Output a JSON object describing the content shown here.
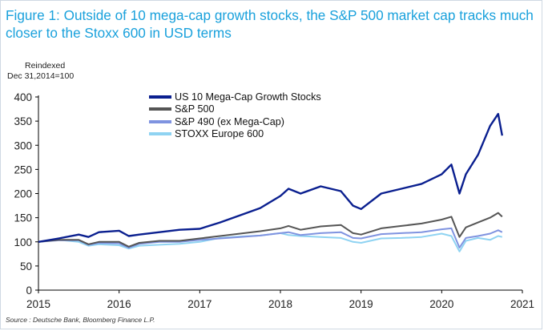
{
  "figure": {
    "title": "Figure 1: Outside of 10 mega-cap growth stocks, the S&P 500 market cap tracks much closer to the Stoxx 600 in USD terms",
    "ylabel_line1": "Reindexed",
    "ylabel_line2": "Dec 31,2014=100",
    "source": "Source : Deutsche Bank, Bloomberg Finance L.P."
  },
  "colors": {
    "title": "#1aa1dc",
    "mega_cap": "#0a1f8f",
    "sp500": "#555555",
    "sp490": "#7f93e0",
    "stoxx": "#8fd3f2"
  },
  "chart_data": {
    "type": "line",
    "ylim": [
      0,
      400
    ],
    "xlim": [
      2015,
      2021
    ],
    "yticks": [
      "0",
      "50",
      "100",
      "150",
      "200",
      "250",
      "300",
      "350",
      "400"
    ],
    "xticks": [
      "2015",
      "2016",
      "2017",
      "2018",
      "2019",
      "2020",
      "2021"
    ],
    "legend_position": "top-left",
    "grid": false,
    "x": [
      2015.0,
      2015.25,
      2015.5,
      2015.62,
      2015.75,
      2016.0,
      2016.12,
      2016.25,
      2016.5,
      2016.75,
      2017.0,
      2017.25,
      2017.5,
      2017.75,
      2018.0,
      2018.1,
      2018.25,
      2018.5,
      2018.75,
      2018.9,
      2019.0,
      2019.25,
      2019.5,
      2019.75,
      2020.0,
      2020.12,
      2020.22,
      2020.3,
      2020.45,
      2020.6,
      2020.7,
      2020.75
    ],
    "series": [
      {
        "name": "US 10 Mega-Cap Growth Stocks",
        "color_key": "mega_cap",
        "values": [
          100,
          107,
          115,
          110,
          120,
          123,
          112,
          115,
          120,
          125,
          127,
          140,
          155,
          170,
          195,
          210,
          200,
          215,
          205,
          175,
          168,
          200,
          210,
          220,
          240,
          260,
          200,
          240,
          280,
          340,
          365,
          320
        ]
      },
      {
        "name": "S&P 500",
        "color_key": "sp500",
        "values": [
          100,
          104,
          104,
          95,
          100,
          100,
          90,
          98,
          102,
          102,
          107,
          112,
          117,
          122,
          128,
          133,
          125,
          132,
          135,
          118,
          115,
          128,
          133,
          138,
          146,
          152,
          110,
          130,
          140,
          150,
          160,
          152
        ]
      },
      {
        "name": "S&P 490 (ex Mega-Cap)",
        "color_key": "sp490",
        "values": [
          100,
          103,
          103,
          94,
          98,
          97,
          88,
          96,
          100,
          100,
          104,
          107,
          110,
          113,
          118,
          120,
          114,
          118,
          120,
          108,
          107,
          116,
          118,
          120,
          126,
          128,
          88,
          108,
          112,
          117,
          124,
          120
        ]
      },
      {
        "name": "STOXX Europe 600",
        "color_key": "stoxx",
        "values": [
          100,
          104,
          100,
          92,
          95,
          93,
          86,
          92,
          94,
          96,
          100,
          108,
          111,
          113,
          118,
          114,
          112,
          110,
          108,
          100,
          98,
          107,
          108,
          110,
          117,
          112,
          80,
          102,
          108,
          104,
          112,
          110
        ]
      }
    ]
  }
}
